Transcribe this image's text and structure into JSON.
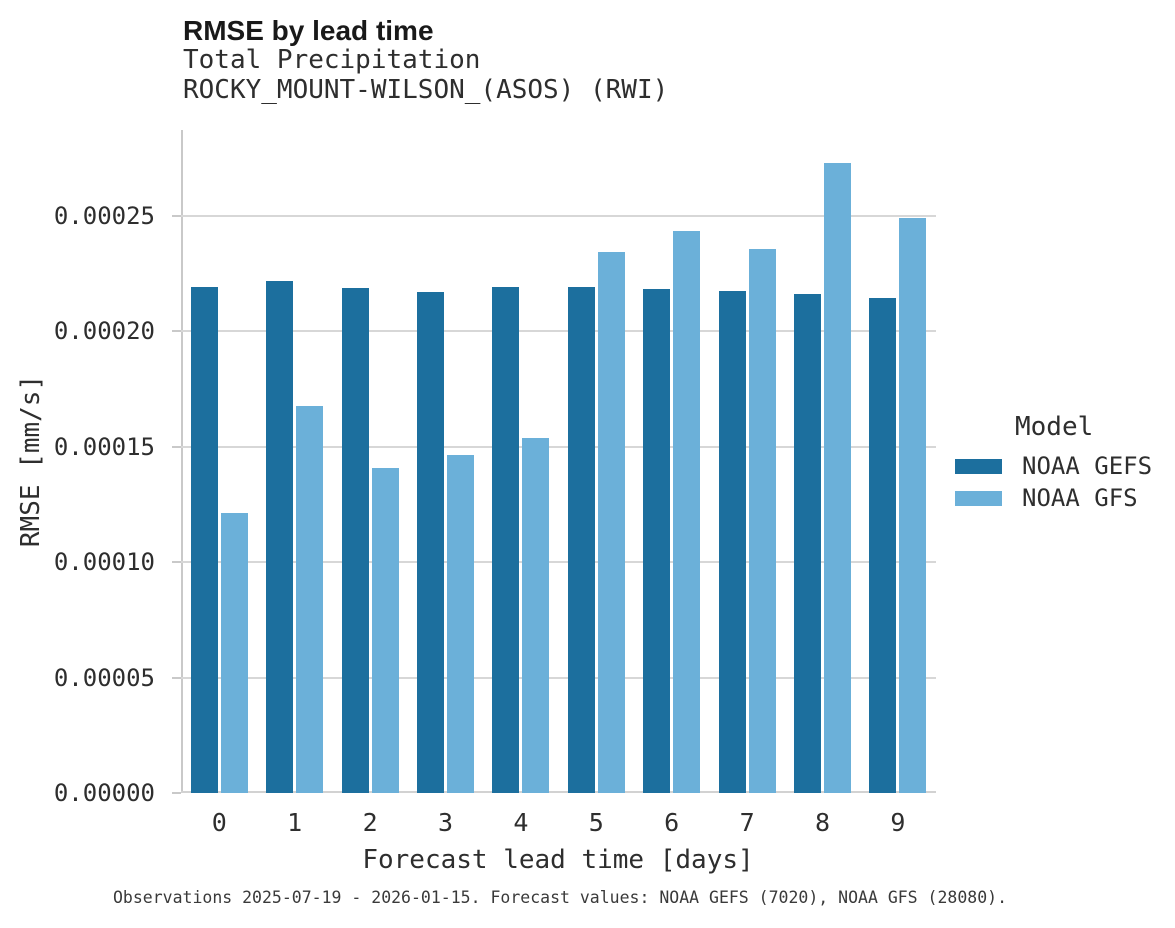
{
  "chart_data": {
    "type": "bar",
    "title": "RMSE by lead time",
    "subtitle": [
      "Total Precipitation",
      "ROCKY_MOUNT-WILSON_(ASOS) (RWI)"
    ],
    "xlabel": "Forecast lead time [days]",
    "ylabel": "RMSE [mm/s]",
    "categories": [
      "0",
      "1",
      "2",
      "3",
      "4",
      "5",
      "6",
      "7",
      "8",
      "9"
    ],
    "series": [
      {
        "name": "NOAA GEFS",
        "color": "#1c6f9e",
        "values": [
          0.0002192,
          0.0002217,
          0.0002185,
          0.000217,
          0.0002192,
          0.0002192,
          0.0002181,
          0.0002174,
          0.0002161,
          0.0002142
        ]
      },
      {
        "name": "NOAA GFS",
        "color": "#6bb0d9",
        "values": [
          0.0001214,
          0.0001677,
          0.0001407,
          0.0001463,
          0.0001538,
          0.0002341,
          0.0002434,
          0.0002356,
          0.0002729,
          0.0002491
        ]
      }
    ],
    "ylim": [
      0,
      0.000287
    ],
    "yticks": {
      "values": [
        0,
        5e-05,
        0.0001,
        0.00015,
        0.0002,
        0.00025
      ],
      "labels": [
        "0.00000",
        "0.00005",
        "0.00010",
        "0.00015",
        "0.00020",
        "0.00025"
      ]
    },
    "grid": "horizontal",
    "legend": {
      "title": "Model",
      "position": "right"
    }
  },
  "footer": {
    "caption": "Observations 2025-07-19 - 2026-01-15. Forecast values: NOAA GEFS (7020), NOAA GFS (28080)."
  }
}
